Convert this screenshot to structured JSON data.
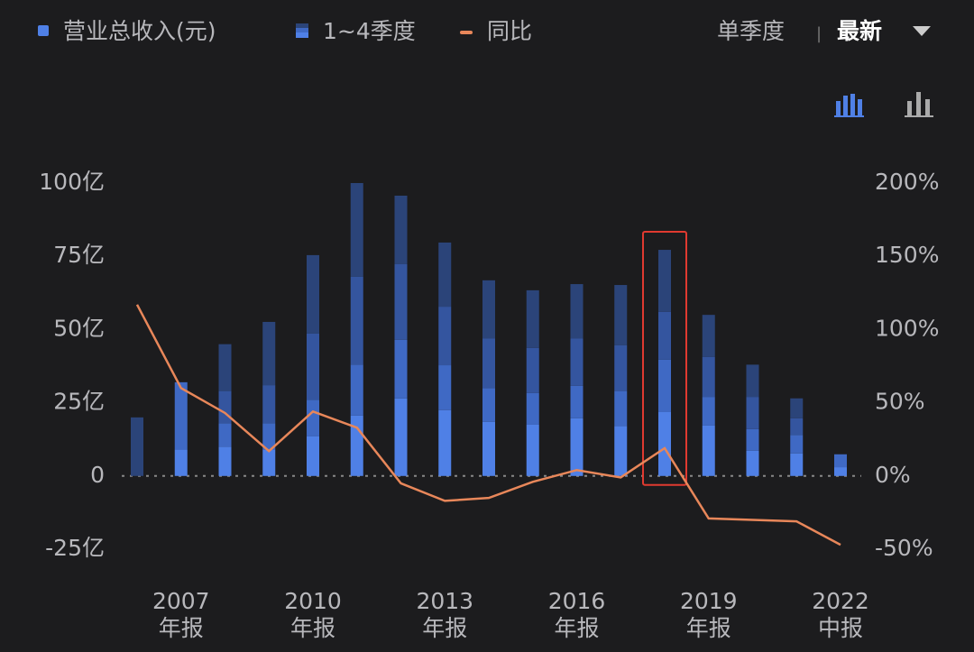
{
  "chart_data": {
    "type": "stacked_bar_line",
    "legend": [
      "营业总收入(元)",
      "1~4季度",
      "同比"
    ],
    "controls": {
      "period": "单季度",
      "separator": "|",
      "sort": "最新"
    },
    "categories": [
      null,
      "2007",
      null,
      null,
      "2010",
      null,
      null,
      "2013",
      null,
      null,
      "2016",
      null,
      null,
      "2019",
      null,
      null,
      "2022"
    ],
    "category_sublabels": [
      null,
      "年报",
      null,
      null,
      "年报",
      null,
      null,
      "年报",
      null,
      null,
      "年报",
      null,
      null,
      "年报",
      null,
      null,
      "中报"
    ],
    "stacks": [
      [
        20
      ],
      [
        9,
        23
      ],
      [
        10,
        8,
        11,
        16
      ],
      [
        9,
        9,
        13,
        21.6
      ],
      [
        13.5,
        12.5,
        22.6,
        26.8
      ],
      [
        20.6,
        17.4,
        30,
        32
      ],
      [
        26.5,
        20,
        25.8,
        23.4
      ],
      [
        22.5,
        15.3,
        20,
        21.9
      ],
      [
        18.5,
        11.5,
        17,
        19.8
      ],
      [
        17.5,
        10.8,
        15.4,
        19.7
      ],
      [
        19.7,
        11.1,
        16.2,
        18.5
      ],
      [
        17,
        12,
        15.6,
        20.6
      ],
      [
        21.8,
        17.9,
        16.3,
        21.2
      ],
      [
        17.2,
        9.8,
        13.6,
        14.4
      ],
      [
        8.6,
        7.4,
        11,
        11
      ],
      [
        7.7,
        6.3,
        5.7,
        6.8
      ],
      [
        3,
        4.4
      ]
    ],
    "segment_colors": [
      "#4f80e6",
      "#3f69c4",
      "#34559f",
      "#2b4479"
    ],
    "yoy": [
      117,
      60,
      43,
      17,
      44,
      33,
      -5,
      -17,
      -15,
      -4,
      4,
      -1,
      19,
      -29,
      -30,
      -31,
      -47
    ],
    "yoy_color": "#e8875a",
    "ylim": [
      -25,
      100
    ],
    "yticks": [
      {
        "value": -25,
        "label": "-25亿"
      },
      0,
      {
        "value": 25,
        "label": "25亿"
      },
      {
        "value": 50,
        "label": "50亿"
      },
      {
        "value": 75,
        "label": "75亿"
      },
      {
        "value": 100,
        "label": "100亿"
      }
    ],
    "y2lim": [
      -50,
      200
    ],
    "y2ticks": [
      {
        "value": -50,
        "label": "-50%"
      },
      {
        "value": 0,
        "label": "0%"
      },
      {
        "value": 50,
        "label": "50%"
      },
      {
        "value": 100,
        "label": "100%"
      },
      {
        "value": 150,
        "label": "150%"
      },
      {
        "value": 200,
        "label": "200%"
      }
    ],
    "highlight_index": 12
  }
}
